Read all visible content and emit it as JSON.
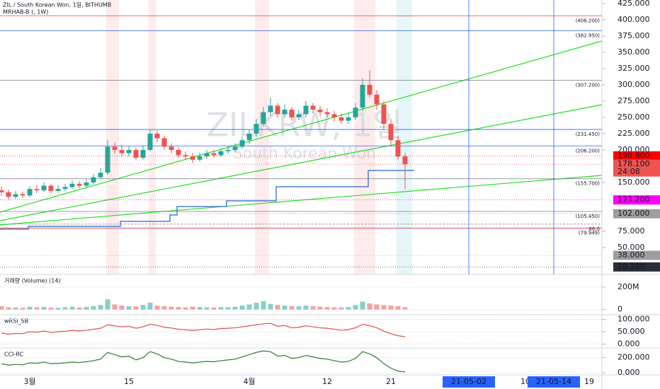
{
  "header": {
    "symbol": "ZIL / South Korean Won, 1일, BITHUMB",
    "indicator": "MRHAB-B (, 1W)"
  },
  "watermark": {
    "symbol": "ZILKRW, 1일",
    "name": "South Korean Won"
  },
  "chart_data": {
    "type": "candlestick",
    "up_color": "#26a69a",
    "down_color": "#ef5350",
    "categories": [
      null,
      null,
      null,
      null,
      "3월",
      null,
      null,
      null,
      null,
      null,
      null,
      null,
      null,
      null,
      null,
      null,
      null,
      null,
      "15",
      null,
      null,
      null,
      null,
      null,
      null,
      null,
      null,
      null,
      null,
      null,
      null,
      null,
      null,
      null,
      null,
      "4월",
      null,
      null,
      null,
      null,
      null,
      null,
      null,
      null,
      null,
      null,
      "12",
      null,
      null,
      null,
      null,
      null,
      null,
      null,
      null,
      "21",
      null,
      null,
      null,
      null,
      null,
      null,
      null,
      null,
      null,
      null,
      "21-05-02",
      null,
      null,
      null,
      null,
      null,
      null,
      null,
      "10",
      null,
      null,
      null,
      "21-05-14",
      null,
      null,
      null,
      null,
      "19"
    ],
    "open": [
      138,
      135,
      128,
      132,
      130,
      140,
      138,
      145,
      137,
      140,
      143,
      148,
      145,
      150,
      158,
      165,
      205,
      200,
      195,
      200,
      188,
      200,
      225,
      218,
      205,
      200,
      192,
      190,
      185,
      190,
      195,
      192,
      198,
      200,
      205,
      215,
      225,
      240,
      258,
      268,
      255,
      262,
      250,
      255,
      268,
      262,
      258,
      255,
      250,
      245,
      250,
      265,
      300,
      285,
      270,
      240,
      215,
      190,
      null,
      null,
      null,
      null,
      null,
      null,
      null,
      null,
      null,
      null,
      null,
      null,
      null,
      null,
      null,
      null,
      null,
      null,
      null,
      null,
      null,
      null,
      null,
      null,
      null,
      null
    ],
    "high": [
      144,
      139,
      137,
      136,
      144,
      146,
      150,
      148,
      146,
      148,
      153,
      152,
      155,
      163,
      172,
      215,
      212,
      208,
      206,
      204,
      208,
      232,
      230,
      222,
      210,
      204,
      198,
      195,
      196,
      200,
      200,
      203,
      206,
      210,
      220,
      232,
      248,
      266,
      280,
      272,
      270,
      266,
      262,
      275,
      272,
      268,
      264,
      260,
      256,
      258,
      272,
      310,
      322,
      292,
      275,
      248,
      222,
      195,
      null,
      null,
      null,
      null,
      null,
      null,
      null,
      null,
      null,
      null,
      null,
      null,
      null,
      null,
      null,
      null,
      null,
      null,
      null,
      null,
      null,
      null,
      null,
      null,
      null,
      null
    ],
    "low": [
      130,
      124,
      125,
      126,
      127,
      134,
      135,
      133,
      134,
      137,
      140,
      141,
      142,
      147,
      155,
      162,
      194,
      190,
      190,
      184,
      185,
      198,
      212,
      200,
      195,
      188,
      185,
      180,
      182,
      186,
      188,
      189,
      194,
      196,
      202,
      210,
      220,
      236,
      252,
      250,
      250,
      245,
      246,
      250,
      256,
      252,
      250,
      244,
      240,
      240,
      246,
      260,
      280,
      262,
      232,
      205,
      185,
      140,
      null,
      null,
      null,
      null,
      null,
      null,
      null,
      null,
      null,
      null,
      null,
      null,
      null,
      null,
      null,
      null,
      null,
      null,
      null,
      null,
      null,
      null,
      null,
      null,
      null,
      null
    ],
    "close": [
      135,
      128,
      132,
      130,
      140,
      138,
      145,
      137,
      140,
      143,
      148,
      145,
      150,
      158,
      165,
      205,
      200,
      195,
      200,
      188,
      200,
      225,
      218,
      205,
      200,
      192,
      190,
      185,
      190,
      195,
      192,
      198,
      200,
      205,
      215,
      225,
      240,
      258,
      268,
      255,
      262,
      250,
      255,
      268,
      262,
      258,
      255,
      250,
      245,
      250,
      265,
      300,
      285,
      270,
      240,
      215,
      190,
      178.1,
      null,
      null,
      null,
      null,
      null,
      null,
      null,
      null,
      null,
      null,
      null,
      null,
      null,
      null,
      null,
      null,
      null,
      null,
      null,
      null,
      null,
      null,
      null,
      null,
      null,
      null
    ],
    "ylim": [
      8.7,
      430.4
    ],
    "yticks": [
      {
        "value": 425,
        "label": "425.000"
      },
      {
        "value": 400,
        "label": "400.000"
      },
      {
        "value": 375,
        "label": "375.000"
      },
      {
        "value": 350,
        "label": "350.000"
      },
      {
        "value": 325,
        "label": "325.000"
      },
      {
        "value": 300,
        "label": "300.000"
      },
      {
        "value": 275,
        "label": "275.000"
      },
      {
        "value": 250,
        "label": "250.000"
      },
      {
        "value": 225,
        "label": "225.000"
      },
      {
        "value": 200,
        "label": "200.000"
      },
      {
        "value": 150,
        "label": "150.000"
      },
      {
        "value": 75,
        "label": "75.000"
      },
      {
        "value": 50,
        "label": "50.000"
      }
    ],
    "levels": [
      {
        "value": 406.2,
        "label": "(406.200)",
        "color": "#f23645"
      },
      {
        "value": 382.95,
        "label": "(382.950)",
        "color": "#2962ff"
      },
      {
        "value": 307.2,
        "label": "(307.200)",
        "color": "#787b86"
      },
      {
        "value": 231.45,
        "label": "(231.450)",
        "color": "#2962ff"
      },
      {
        "value": 206.2,
        "label": "(206.200)",
        "color": "#2962ff"
      },
      {
        "value": 155.7,
        "label": "(155.700)",
        "color": "#787b86"
      },
      {
        "value": 105.45,
        "label": "(105.450)",
        "color": "#787b86"
      },
      {
        "value": 86,
        "label": "86.0",
        "color": "#787b86"
      },
      {
        "value": 79.949,
        "label": "(79.949)",
        "color": "#f23645"
      }
    ],
    "price_labels": [
      {
        "value": 190.8,
        "label": "190.800",
        "color": "#ff0000"
      },
      {
        "value": 178.1,
        "label": "178.100",
        "countdown": "24:08",
        "color": "#f05350"
      },
      {
        "value": 123.2,
        "label": "123.200",
        "color": "#ff00ff"
      },
      {
        "value": 102,
        "label": "102.000",
        "color": "#9e9e9e"
      },
      {
        "value": 38,
        "label": "38.000",
        "color": "#9e9e9e"
      },
      {
        "value": 20.2,
        "label": "20.200",
        "color": "#2a2e39"
      }
    ],
    "marker_color": "#2962ff",
    "indicators": [
      {
        "type": "bar",
        "name": "거래량 (Volume) (14)",
        "ylim": [
          -15,
          300
        ],
        "yticks": [
          {
            "value": 200,
            "label": "200M"
          },
          0
        ],
        "values": [
          30,
          20,
          18,
          15,
          25,
          20,
          22,
          18,
          15,
          20,
          25,
          18,
          22,
          30,
          40,
          90,
          45,
          35,
          30,
          28,
          40,
          60,
          35,
          30,
          25,
          22,
          20,
          25,
          22,
          20,
          18,
          22,
          20,
          25,
          35,
          45,
          60,
          75,
          50,
          40,
          35,
          30,
          28,
          35,
          30,
          25,
          22,
          20,
          18,
          22,
          40,
          70,
          55,
          45,
          40,
          35,
          30,
          20,
          null,
          null,
          null,
          null,
          null,
          null,
          null,
          null,
          null,
          null,
          null,
          null,
          null,
          null,
          null,
          null,
          null,
          null,
          null,
          null,
          null,
          null,
          null,
          null,
          null,
          null
        ]
      },
      {
        "type": "line",
        "name": "wRSI_SB",
        "color": "#e05050",
        "ylim": [
          -10,
          113
        ],
        "yticks": [
          {
            "value": 100,
            "label": "100.000"
          },
          {
            "value": 50,
            "label": "50.000"
          },
          {
            "value": 0,
            "label": "0.000"
          }
        ],
        "values": [
          45,
          40,
          43,
          42,
          50,
          48,
          53,
          47,
          50,
          52,
          55,
          53,
          56,
          60,
          64,
          78,
          74,
          70,
          72,
          64,
          70,
          80,
          76,
          68,
          65,
          60,
          58,
          55,
          58,
          61,
          59,
          63,
          64,
          66,
          70,
          74,
          78,
          82,
          84,
          72,
          75,
          66,
          68,
          74,
          70,
          66,
          64,
          60,
          56,
          59,
          66,
          80,
          74,
          66,
          52,
          42,
          34,
          30,
          null,
          null,
          null,
          null,
          null,
          null,
          null,
          null,
          null,
          null,
          null,
          null,
          null,
          null,
          null,
          null,
          null,
          null,
          null,
          null,
          null,
          null,
          null,
          null,
          null,
          null
        ]
      },
      {
        "type": "line",
        "name": "CCI-RC",
        "color": "#2e7d32",
        "ylim": [
          -20,
          310
        ],
        "yticks": [
          {
            "value": 200,
            "label": "200.000"
          },
          {
            "value": 0,
            "label": "0.000"
          }
        ],
        "values": [
          120,
          100,
          110,
          105,
          130,
          125,
          140,
          120,
          125,
          130,
          140,
          135,
          145,
          160,
          180,
          270,
          240,
          210,
          220,
          170,
          200,
          280,
          250,
          200,
          180,
          150,
          140,
          130,
          140,
          150,
          145,
          160,
          170,
          180,
          210,
          240,
          270,
          290,
          280,
          220,
          230,
          190,
          200,
          230,
          210,
          190,
          180,
          160,
          140,
          150,
          190,
          280,
          250,
          200,
          120,
          60,
          20,
          10,
          null,
          null,
          null,
          null,
          null,
          null,
          null,
          null,
          null,
          null,
          null,
          null,
          null,
          null,
          null,
          null,
          null,
          null,
          null,
          null,
          null,
          null,
          null,
          null,
          null,
          null
        ]
      }
    ]
  }
}
